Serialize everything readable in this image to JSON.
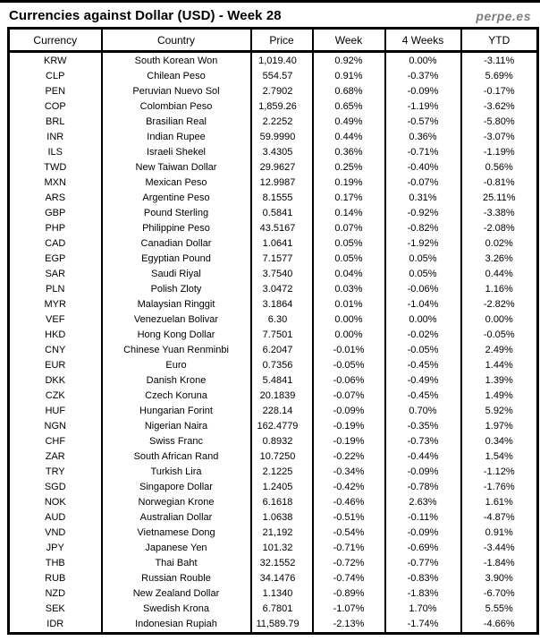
{
  "page": {
    "title": "Currencies against Dollar (USD) - Week 28",
    "brand": "perpe.es"
  },
  "colors": {
    "positive": "#2e9e5b",
    "negative": "#ff3b3b",
    "border": "#000000",
    "title_text": "#000000",
    "brand_text": "#7f7f7f",
    "background": "#ffffff"
  },
  "chart_data": {
    "type": "table",
    "title": "Currencies against Dollar (USD) - Week 28",
    "columns": [
      "Currency",
      "Country",
      "Price",
      "Week",
      "4 Weeks",
      "YTD"
    ],
    "rows": [
      {
        "code": "KRW",
        "country": "South Korean Won",
        "price": "1,019.40",
        "week": "0.92%",
        "week_dir": "pos",
        "weeks4": "0.00%",
        "weeks4_dir": "neg",
        "ytd": "-3.11%",
        "ytd_dir": "neg"
      },
      {
        "code": "CLP",
        "country": "Chilean Peso",
        "price": "554.57",
        "week": "0.91%",
        "week_dir": "pos",
        "weeks4": "-0.37%",
        "weeks4_dir": "neg",
        "ytd": "5.69%",
        "ytd_dir": "pos"
      },
      {
        "code": "PEN",
        "country": "Peruvian Nuevo Sol",
        "price": "2.7902",
        "week": "0.68%",
        "week_dir": "pos",
        "weeks4": "-0.09%",
        "weeks4_dir": "neg",
        "ytd": "-0.17%",
        "ytd_dir": "neg"
      },
      {
        "code": "COP",
        "country": "Colombian Peso",
        "price": "1,859.26",
        "week": "0.65%",
        "week_dir": "pos",
        "weeks4": "-1.19%",
        "weeks4_dir": "neg",
        "ytd": "-3.62%",
        "ytd_dir": "neg"
      },
      {
        "code": "BRL",
        "country": "Brasilian Real",
        "price": "2.2252",
        "week": "0.49%",
        "week_dir": "pos",
        "weeks4": "-0.57%",
        "weeks4_dir": "neg",
        "ytd": "-5.80%",
        "ytd_dir": "neg"
      },
      {
        "code": "INR",
        "country": "Indian Rupee",
        "price": "59.9990",
        "week": "0.44%",
        "week_dir": "pos",
        "weeks4": "0.36%",
        "weeks4_dir": "pos",
        "ytd": "-3.07%",
        "ytd_dir": "neg"
      },
      {
        "code": "ILS",
        "country": "Israeli Shekel",
        "price": "3.4305",
        "week": "0.36%",
        "week_dir": "pos",
        "weeks4": "-0.71%",
        "weeks4_dir": "neg",
        "ytd": "-1.19%",
        "ytd_dir": "neg"
      },
      {
        "code": "TWD",
        "country": "New Taiwan Dollar",
        "price": "29.9627",
        "week": "0.25%",
        "week_dir": "pos",
        "weeks4": "-0.40%",
        "weeks4_dir": "neg",
        "ytd": "0.56%",
        "ytd_dir": "pos"
      },
      {
        "code": "MXN",
        "country": "Mexican Peso",
        "price": "12.9987",
        "week": "0.19%",
        "week_dir": "pos",
        "weeks4": "-0.07%",
        "weeks4_dir": "neg",
        "ytd": "-0.81%",
        "ytd_dir": "neg"
      },
      {
        "code": "ARS",
        "country": "Argentine Peso",
        "price": "8.1555",
        "week": "0.17%",
        "week_dir": "pos",
        "weeks4": "0.31%",
        "weeks4_dir": "pos",
        "ytd": "25.11%",
        "ytd_dir": "pos"
      },
      {
        "code": "GBP",
        "country": "Pound Sterling",
        "price": "0.5841",
        "week": "0.14%",
        "week_dir": "pos",
        "weeks4": "-0.92%",
        "weeks4_dir": "neg",
        "ytd": "-3.38%",
        "ytd_dir": "neg"
      },
      {
        "code": "PHP",
        "country": "Philippine Peso",
        "price": "43.5167",
        "week": "0.07%",
        "week_dir": "pos",
        "weeks4": "-0.82%",
        "weeks4_dir": "neg",
        "ytd": "-2.08%",
        "ytd_dir": "neg"
      },
      {
        "code": "CAD",
        "country": "Canadian Dollar",
        "price": "1.0641",
        "week": "0.05%",
        "week_dir": "pos",
        "weeks4": "-1.92%",
        "weeks4_dir": "neg",
        "ytd": "0.02%",
        "ytd_dir": "pos"
      },
      {
        "code": "EGP",
        "country": "Egyptian Pound",
        "price": "7.1577",
        "week": "0.05%",
        "week_dir": "pos",
        "weeks4": "0.05%",
        "weeks4_dir": "pos",
        "ytd": "3.26%",
        "ytd_dir": "pos"
      },
      {
        "code": "SAR",
        "country": "Saudi Riyal",
        "price": "3.7540",
        "week": "0.04%",
        "week_dir": "pos",
        "weeks4": "0.05%",
        "weeks4_dir": "pos",
        "ytd": "0.44%",
        "ytd_dir": "pos"
      },
      {
        "code": "PLN",
        "country": "Polish Zloty",
        "price": "3.0472",
        "week": "0.03%",
        "week_dir": "pos",
        "weeks4": "-0.06%",
        "weeks4_dir": "neg",
        "ytd": "1.16%",
        "ytd_dir": "pos"
      },
      {
        "code": "MYR",
        "country": "Malaysian Ringgit",
        "price": "3.1864",
        "week": "0.01%",
        "week_dir": "pos",
        "weeks4": "-1.04%",
        "weeks4_dir": "neg",
        "ytd": "-2.82%",
        "ytd_dir": "neg"
      },
      {
        "code": "VEF",
        "country": "Venezuelan Bolivar",
        "price": "6.30",
        "week": "0.00%",
        "week_dir": "pos",
        "weeks4": "0.00%",
        "weeks4_dir": "pos",
        "ytd": "0.00%",
        "ytd_dir": "pos"
      },
      {
        "code": "HKD",
        "country": "Hong Kong Dollar",
        "price": "7.7501",
        "week": "0.00%",
        "week_dir": "neg",
        "weeks4": "-0.02%",
        "weeks4_dir": "neg",
        "ytd": "-0.05%",
        "ytd_dir": "neg"
      },
      {
        "code": "CNY",
        "country": "Chinese Yuan Renminbi",
        "price": "6.2047",
        "week": "-0.01%",
        "week_dir": "neg",
        "weeks4": "-0.05%",
        "weeks4_dir": "neg",
        "ytd": "2.49%",
        "ytd_dir": "pos"
      },
      {
        "code": "EUR",
        "country": "Euro",
        "price": "0.7356",
        "week": "-0.05%",
        "week_dir": "neg",
        "weeks4": "-0.45%",
        "weeks4_dir": "neg",
        "ytd": "1.44%",
        "ytd_dir": "pos"
      },
      {
        "code": "DKK",
        "country": "Danish Krone",
        "price": "5.4841",
        "week": "-0.06%",
        "week_dir": "neg",
        "weeks4": "-0.49%",
        "weeks4_dir": "neg",
        "ytd": "1.39%",
        "ytd_dir": "pos"
      },
      {
        "code": "CZK",
        "country": "Czech Koruna",
        "price": "20.1839",
        "week": "-0.07%",
        "week_dir": "neg",
        "weeks4": "-0.45%",
        "weeks4_dir": "neg",
        "ytd": "1.49%",
        "ytd_dir": "pos"
      },
      {
        "code": "HUF",
        "country": "Hungarian Forint",
        "price": "228.14",
        "week": "-0.09%",
        "week_dir": "neg",
        "weeks4": "0.70%",
        "weeks4_dir": "pos",
        "ytd": "5.92%",
        "ytd_dir": "pos"
      },
      {
        "code": "NGN",
        "country": "Nigerian Naira",
        "price": "162.4779",
        "week": "-0.19%",
        "week_dir": "neg",
        "weeks4": "-0.35%",
        "weeks4_dir": "neg",
        "ytd": "1.97%",
        "ytd_dir": "pos"
      },
      {
        "code": "CHF",
        "country": "Swiss Franc",
        "price": "0.8932",
        "week": "-0.19%",
        "week_dir": "neg",
        "weeks4": "-0.73%",
        "weeks4_dir": "neg",
        "ytd": "0.34%",
        "ytd_dir": "pos"
      },
      {
        "code": "ZAR",
        "country": "South African Rand",
        "price": "10.7250",
        "week": "-0.22%",
        "week_dir": "neg",
        "weeks4": "-0.44%",
        "weeks4_dir": "neg",
        "ytd": "1.54%",
        "ytd_dir": "pos"
      },
      {
        "code": "TRY",
        "country": "Turkish Lira",
        "price": "2.1225",
        "week": "-0.34%",
        "week_dir": "neg",
        "weeks4": "-0.09%",
        "weeks4_dir": "neg",
        "ytd": "-1.12%",
        "ytd_dir": "neg"
      },
      {
        "code": "SGD",
        "country": "Singapore Dollar",
        "price": "1.2405",
        "week": "-0.42%",
        "week_dir": "neg",
        "weeks4": "-0.78%",
        "weeks4_dir": "neg",
        "ytd": "-1.76%",
        "ytd_dir": "neg"
      },
      {
        "code": "NOK",
        "country": "Norwegian Krone",
        "price": "6.1618",
        "week": "-0.46%",
        "week_dir": "neg",
        "weeks4": "2.63%",
        "weeks4_dir": "pos",
        "ytd": "1.61%",
        "ytd_dir": "pos"
      },
      {
        "code": "AUD",
        "country": "Australian Dollar",
        "price": "1.0638",
        "week": "-0.51%",
        "week_dir": "neg",
        "weeks4": "-0.11%",
        "weeks4_dir": "neg",
        "ytd": "-4.87%",
        "ytd_dir": "neg"
      },
      {
        "code": "VND",
        "country": "Vietnamese Dong",
        "price": "21,192",
        "week": "-0.54%",
        "week_dir": "neg",
        "weeks4": "-0.09%",
        "weeks4_dir": "neg",
        "ytd": "0.91%",
        "ytd_dir": "pos"
      },
      {
        "code": "JPY",
        "country": "Japanese Yen",
        "price": "101.32",
        "week": "-0.71%",
        "week_dir": "neg",
        "weeks4": "-0.69%",
        "weeks4_dir": "neg",
        "ytd": "-3.44%",
        "ytd_dir": "neg"
      },
      {
        "code": "THB",
        "country": "Thai Baht",
        "price": "32.1552",
        "week": "-0.72%",
        "week_dir": "neg",
        "weeks4": "-0.77%",
        "weeks4_dir": "neg",
        "ytd": "-1.84%",
        "ytd_dir": "neg"
      },
      {
        "code": "RUB",
        "country": "Russian Rouble",
        "price": "34.1476",
        "week": "-0.74%",
        "week_dir": "neg",
        "weeks4": "-0.83%",
        "weeks4_dir": "neg",
        "ytd": "3.90%",
        "ytd_dir": "pos"
      },
      {
        "code": "NZD",
        "country": "New Zealand Dollar",
        "price": "1.1340",
        "week": "-0.89%",
        "week_dir": "neg",
        "weeks4": "-1.83%",
        "weeks4_dir": "neg",
        "ytd": "-6.70%",
        "ytd_dir": "neg"
      },
      {
        "code": "SEK",
        "country": "Swedish Krona",
        "price": "6.7801",
        "week": "-1.07%",
        "week_dir": "neg",
        "weeks4": "1.70%",
        "weeks4_dir": "pos",
        "ytd": "5.55%",
        "ytd_dir": "pos"
      },
      {
        "code": "IDR",
        "country": "Indonesian Rupiah",
        "price": "11,589.79",
        "week": "-2.13%",
        "week_dir": "neg",
        "weeks4": "-1.74%",
        "weeks4_dir": "neg",
        "ytd": "-4.66%",
        "ytd_dir": "neg"
      }
    ]
  }
}
